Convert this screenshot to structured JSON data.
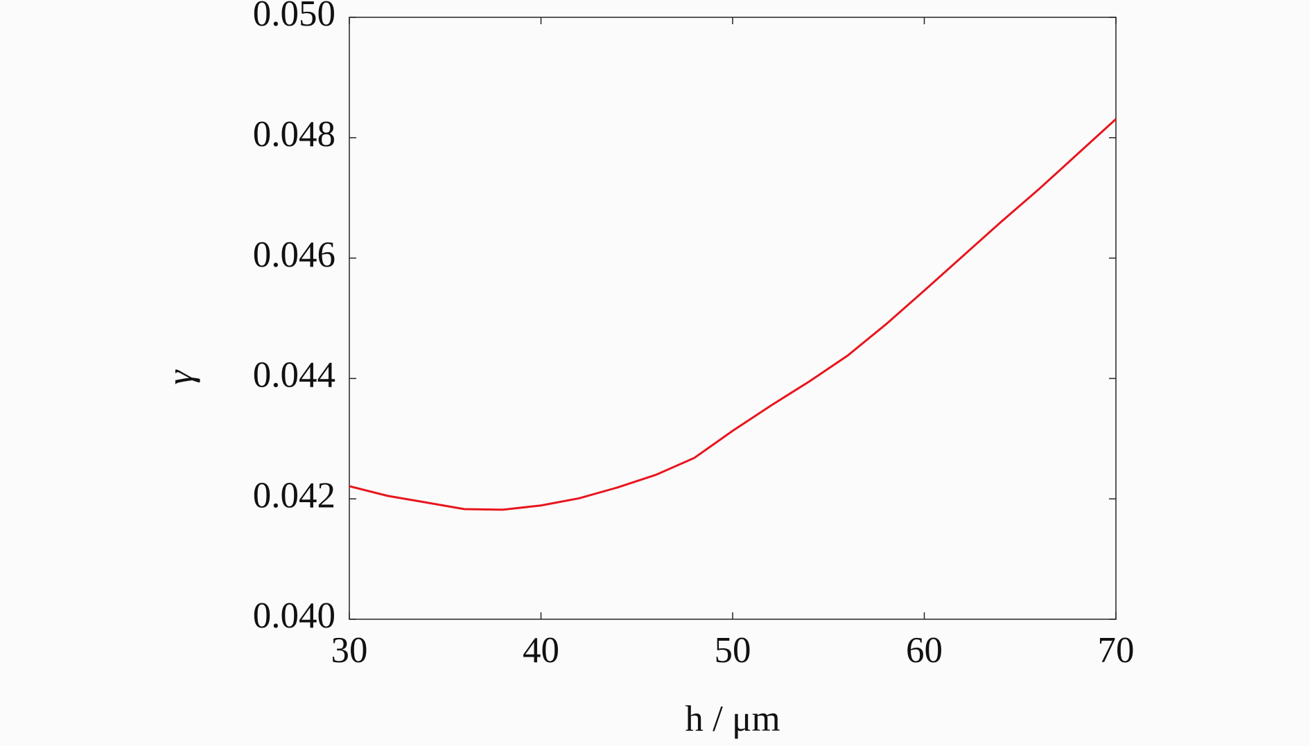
{
  "chart_data": {
    "type": "line",
    "xlabel": "h / μm",
    "ylabel": "γ",
    "x": [
      30,
      32,
      34,
      36,
      38,
      40,
      42,
      44,
      46,
      48,
      50,
      52,
      54,
      56,
      58,
      60,
      62,
      64,
      66,
      68,
      70
    ],
    "series": [
      {
        "color": "#e8141c",
        "values": [
          0.04221,
          0.04205,
          0.04194,
          0.04183,
          0.04182,
          0.04189,
          0.04201,
          0.04219,
          0.0424,
          0.04268,
          0.04313,
          0.04355,
          0.04395,
          0.04438,
          0.0449,
          0.04546,
          0.04603,
          0.0466,
          0.04715,
          0.04773,
          0.04831
        ]
      }
    ],
    "xlim": [
      30,
      70
    ],
    "xticks": [
      30,
      40,
      50,
      60,
      70
    ],
    "ylim": [
      0.04,
      0.05
    ],
    "yticks": [
      {
        "value": 0.04,
        "label": "0.040"
      },
      0.042,
      0.044,
      0.046,
      0.048,
      {
        "value": 0.05,
        "label": "0.050"
      }
    ]
  }
}
